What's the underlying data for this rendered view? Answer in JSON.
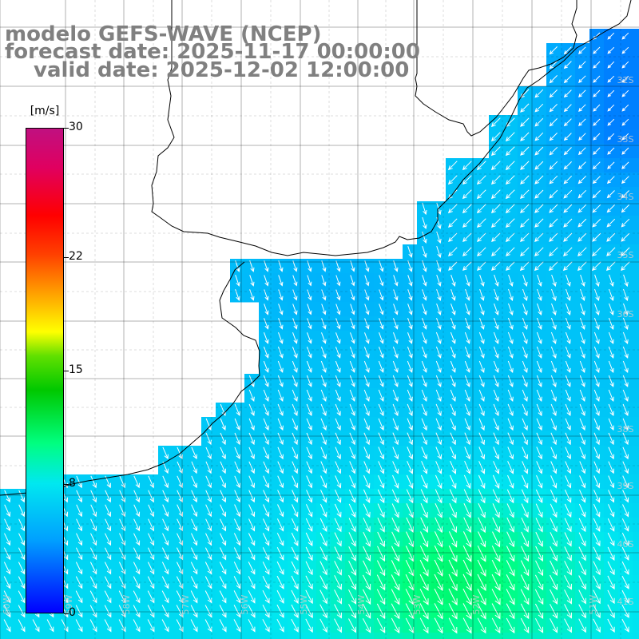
{
  "header": {
    "line1": "modelo GEFS-WAVE (NCEP)",
    "line2": "forecast date: 2025-11-17 00:00:00",
    "line3": "valid date: 2025-12-02 12:00:00"
  },
  "colorbar": {
    "units": "[m/s]",
    "min": 0,
    "max": 30,
    "ticks": [
      {
        "label": "30",
        "value": 30
      },
      {
        "label": "22",
        "value": 22
      },
      {
        "label": "15",
        "value": 15
      },
      {
        "label": "8",
        "value": 8
      },
      {
        "label": "0",
        "value": 0
      }
    ]
  },
  "map": {
    "lat_labels": [
      "32S",
      "33S",
      "34S",
      "35S",
      "36S",
      "38S",
      "39S",
      "40S",
      "41S"
    ],
    "lon_labels": [
      "60W",
      "59W",
      "58W",
      "57W",
      "56W",
      "55W",
      "54W",
      "53W",
      "52W",
      "51W"
    ],
    "colors": {
      "land": "#ffffff",
      "grid": "#000000",
      "arrow": "#ffffff",
      "title": "#808080"
    }
  }
}
